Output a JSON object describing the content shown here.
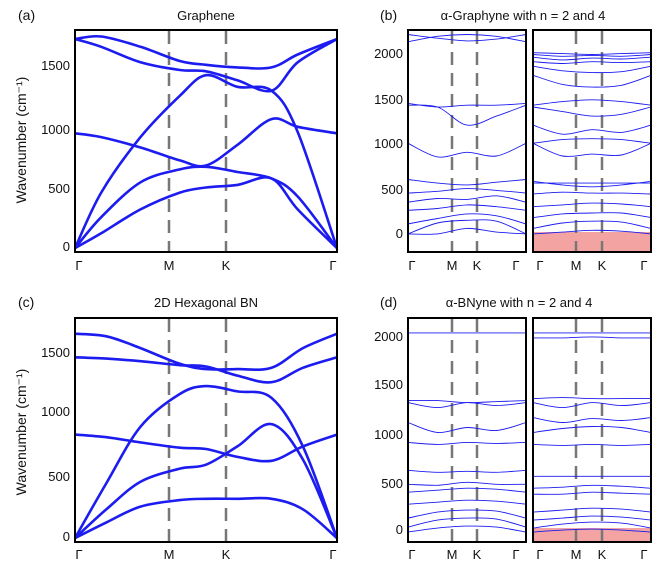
{
  "figure": {
    "panels": [
      {
        "label": "(a)",
        "title": "Graphene",
        "ylabel": "Wavenumber (cm⁻¹)"
      },
      {
        "label": "(b)",
        "title": "α-Graphyne with n = 2 and 4",
        "ylabel": ""
      },
      {
        "label": "(c)",
        "title": "2D Hexagonal BN",
        "ylabel": "Wavenumber (cm⁻¹)"
      },
      {
        "label": "(d)",
        "title": "α-BNyne with n = 2 and 4",
        "ylabel": ""
      }
    ],
    "colors": {
      "bands": "#1c1cf0",
      "highlight": "#f4a3a3",
      "dashes": "#777777",
      "frame": "#000000"
    }
  },
  "chart_data": [
    {
      "type": "line",
      "id": "a",
      "title": "Graphene",
      "ylabel": "Wavenumber (cm⁻¹)",
      "x_ticks": [
        "Γ",
        "M",
        "K",
        "Γ"
      ],
      "x_tick_positions": [
        0,
        0.5,
        0.75,
        1
      ],
      "y_ticks": [
        0,
        500,
        1000,
        1500
      ],
      "ylim": [
        -30,
        1690
      ],
      "series": [
        {
          "x": [
            0,
            0.1,
            0.25,
            0.4,
            0.5,
            0.62,
            0.75,
            0.85,
            1
          ],
          "values": [
            0,
            115,
            300,
            430,
            470,
            490,
            540,
            300,
            0
          ]
        },
        {
          "x": [
            0,
            0.1,
            0.25,
            0.4,
            0.5,
            0.62,
            0.75,
            0.85,
            1
          ],
          "values": [
            0,
            240,
            510,
            610,
            630,
            590,
            540,
            400,
            0
          ]
        },
        {
          "x": [
            0,
            0.1,
            0.25,
            0.4,
            0.5,
            0.62,
            0.75,
            0.85,
            1
          ],
          "values": [
            0,
            430,
            860,
            1180,
            1340,
            1250,
            1220,
            900,
            0
          ]
        },
        {
          "x": [
            0,
            0.1,
            0.25,
            0.4,
            0.5,
            0.62,
            0.75,
            0.85,
            1
          ],
          "values": [
            890,
            860,
            780,
            680,
            640,
            800,
            1000,
            940,
            890
          ]
        },
        {
          "x": [
            0,
            0.1,
            0.25,
            0.4,
            0.5,
            0.62,
            0.75,
            0.85,
            1
          ],
          "values": [
            1620,
            1560,
            1440,
            1380,
            1370,
            1300,
            1220,
            1440,
            1620
          ]
        },
        {
          "x": [
            0,
            0.1,
            0.25,
            0.4,
            0.5,
            0.62,
            0.75,
            0.85,
            1
          ],
          "values": [
            1620,
            1640,
            1560,
            1450,
            1420,
            1400,
            1400,
            1500,
            1620
          ]
        }
      ]
    },
    {
      "type": "line",
      "id": "b",
      "title": "α-Graphyne with n = 2 and 4",
      "x_ticks": [
        "Γ",
        "M",
        "K",
        "Γ"
      ],
      "x_tick_positions": [
        0,
        0.5,
        0.75,
        1
      ],
      "y_ticks": [
        0,
        500,
        1000,
        1500,
        2000
      ],
      "ylim": [
        -200,
        2250
      ],
      "subpanels": [
        {
          "name": "n = 2",
          "lines": [
            [
              0,
              0,
              60,
              20,
              0
            ],
            [
              0,
              120,
              150,
              140,
              0
            ],
            [
              110,
              170,
              220,
              200,
              110
            ],
            [
              260,
              280,
              320,
              300,
              260
            ],
            [
              350,
              390,
              380,
              420,
              350
            ],
            [
              450,
              470,
              500,
              480,
              450
            ],
            [
              600,
              560,
              540,
              570,
              600
            ],
            [
              1000,
              850,
              900,
              860,
              1000
            ],
            [
              1420,
              1400,
              1200,
              1300,
              1420
            ],
            [
              1440,
              1400,
              1420,
              1420,
              1440
            ],
            [
              2120,
              2180,
              2200,
              2180,
              2120
            ],
            [
              2200,
              2160,
              2130,
              2150,
              2200
            ]
          ]
        },
        {
          "name": "n = 4",
          "lines": [
            [
              0,
              20,
              40,
              30,
              0
            ],
            [
              60,
              120,
              140,
              130,
              60
            ],
            [
              180,
              220,
              230,
              230,
              180
            ],
            [
              300,
              320,
              340,
              330,
              300
            ],
            [
              440,
              460,
              450,
              450,
              440
            ],
            [
              560,
              560,
              560,
              560,
              560
            ],
            [
              580,
              540,
              520,
              540,
              580
            ],
            [
              1000,
              860,
              880,
              870,
              1000
            ],
            [
              1000,
              1040,
              1050,
              1040,
              1000
            ],
            [
              1200,
              1100,
              1150,
              1120,
              1200
            ],
            [
              1400,
              1350,
              1300,
              1320,
              1400
            ],
            [
              1420,
              1460,
              1480,
              1460,
              1420
            ],
            [
              1750,
              1650,
              1620,
              1640,
              1750
            ],
            [
              1850,
              1800,
              1780,
              1790,
              1850
            ],
            [
              1900,
              1880,
              1900,
              1890,
              1900
            ],
            [
              1950,
              1920,
              1940,
              1930,
              1950
            ],
            [
              1980,
              1960,
              1970,
              1960,
              1980
            ],
            [
              2000,
              1990,
              1980,
              1990,
              2000
            ]
          ],
          "highlight": [
            -200,
            0
          ]
        }
      ]
    },
    {
      "type": "line",
      "id": "c",
      "title": "2D Hexagonal BN",
      "ylabel": "Wavenumber (cm⁻¹)",
      "x_ticks": [
        "Γ",
        "M",
        "K",
        "Γ"
      ],
      "x_tick_positions": [
        0,
        0.5,
        0.75,
        1
      ],
      "y_ticks": [
        0,
        500,
        1000,
        1500
      ],
      "ylim": [
        -30,
        1680
      ],
      "series": [
        {
          "x": [
            0,
            0.12,
            0.25,
            0.4,
            0.5,
            0.62,
            0.75,
            0.87,
            1
          ],
          "values": [
            0,
            120,
            240,
            290,
            300,
            300,
            300,
            220,
            0
          ]
        },
        {
          "x": [
            0,
            0.12,
            0.25,
            0.4,
            0.5,
            0.62,
            0.75,
            0.87,
            1
          ],
          "values": [
            0,
            220,
            430,
            530,
            560,
            700,
            870,
            600,
            0
          ]
        },
        {
          "x": [
            0,
            0.12,
            0.25,
            0.4,
            0.5,
            0.62,
            0.75,
            0.87,
            1
          ],
          "values": [
            0,
            420,
            850,
            1100,
            1160,
            1120,
            1070,
            700,
            0
          ]
        },
        {
          "x": [
            0,
            0.12,
            0.25,
            0.4,
            0.5,
            0.62,
            0.75,
            0.87,
            1
          ],
          "values": [
            790,
            770,
            730,
            690,
            680,
            620,
            590,
            700,
            790
          ]
        },
        {
          "x": [
            0,
            0.12,
            0.25,
            0.4,
            0.5,
            0.62,
            0.75,
            0.87,
            1
          ],
          "values": [
            1380,
            1370,
            1350,
            1320,
            1310,
            1240,
            1190,
            1300,
            1380
          ]
        },
        {
          "x": [
            0,
            0.12,
            0.25,
            0.4,
            0.5,
            0.62,
            0.75,
            0.87,
            1
          ],
          "values": [
            1560,
            1540,
            1450,
            1330,
            1290,
            1290,
            1300,
            1450,
            1560
          ]
        }
      ]
    },
    {
      "type": "line",
      "id": "d",
      "title": "α-BNyne with n = 2 and 4",
      "x_ticks": [
        "Γ",
        "M",
        "K",
        "Γ"
      ],
      "x_tick_positions": [
        0,
        0.5,
        0.75,
        1
      ],
      "y_ticks": [
        0,
        500,
        1000,
        1500,
        2000
      ],
      "ylim": [
        -100,
        2150
      ],
      "subpanels": [
        {
          "name": "n = 2",
          "lines": [
            [
              0,
              40,
              60,
              50,
              0
            ],
            [
              50,
              120,
              140,
              130,
              50
            ],
            [
              140,
              200,
              220,
              210,
              140
            ],
            [
              280,
              300,
              320,
              310,
              280
            ],
            [
              400,
              420,
              440,
              430,
              400
            ],
            [
              480,
              470,
              500,
              480,
              480
            ],
            [
              620,
              600,
              610,
              600,
              620
            ],
            [
              900,
              880,
              900,
              890,
              900
            ],
            [
              1100,
              1000,
              1050,
              1020,
              1100
            ],
            [
              1300,
              1250,
              1300,
              1270,
              1300
            ],
            [
              1320,
              1320,
              1300,
              1310,
              1320
            ],
            [
              2000,
              2000,
              2000,
              2000,
              2000
            ]
          ]
        },
        {
          "name": "n = 4",
          "lines": [
            [
              0,
              20,
              30,
              20,
              0
            ],
            [
              40,
              80,
              100,
              90,
              40
            ],
            [
              120,
              140,
              160,
              150,
              120
            ],
            [
              200,
              220,
              240,
              230,
              200
            ],
            [
              380,
              380,
              400,
              390,
              380
            ],
            [
              440,
              450,
              470,
              460,
              440
            ],
            [
              560,
              560,
              560,
              560,
              560
            ],
            [
              880,
              870,
              880,
              870,
              880
            ],
            [
              1000,
              1040,
              1060,
              1050,
              1000
            ],
            [
              1150,
              1100,
              1140,
              1120,
              1150
            ],
            [
              1300,
              1250,
              1300,
              1270,
              1300
            ],
            [
              1340,
              1350,
              1340,
              1340,
              1340
            ],
            [
              1950,
              1950,
              1960,
              1950,
              1950
            ],
            [
              2000,
              2000,
              2000,
              2000,
              2000
            ]
          ],
          "highlight": [
            -100,
            0
          ]
        }
      ]
    }
  ]
}
